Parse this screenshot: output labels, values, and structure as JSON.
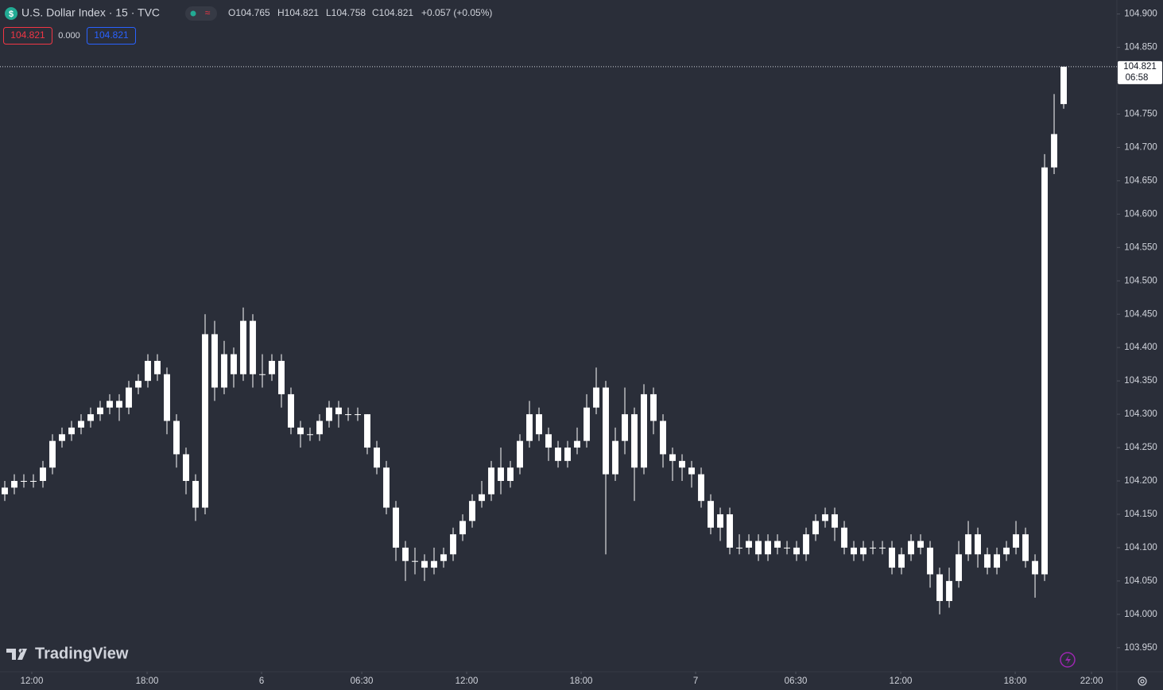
{
  "header": {
    "title": "U.S. Dollar Index · 15 · TVC",
    "ohlc": [
      "O104.765",
      "H104.821",
      "L104.758",
      "C104.821"
    ],
    "change": "+0.057 (+0.05%)",
    "price_tags": [
      "104.821",
      "0.000",
      "104.821"
    ]
  },
  "watermark": "TradingView",
  "chart_data": {
    "type": "candlestick",
    "color": "#ffffff",
    "background": "#2a2e39",
    "ylim": [
      103.914,
      104.921
    ],
    "yticks": [
      {
        "value": 103.95,
        "label": "103.950"
      },
      {
        "value": 104.0,
        "label": "104.000"
      },
      {
        "value": 104.05,
        "label": "104.050"
      },
      {
        "value": 104.1,
        "label": "104.100"
      },
      {
        "value": 104.15,
        "label": "104.150"
      },
      {
        "value": 104.2,
        "label": "104.200"
      },
      {
        "value": 104.25,
        "label": "104.250"
      },
      {
        "value": 104.3,
        "label": "104.300"
      },
      {
        "value": 104.35,
        "label": "104.350"
      },
      {
        "value": 104.4,
        "label": "104.400"
      },
      {
        "value": 104.45,
        "label": "104.450"
      },
      {
        "value": 104.5,
        "label": "104.500"
      },
      {
        "value": 104.55,
        "label": "104.550"
      },
      {
        "value": 104.6,
        "label": "104.600"
      },
      {
        "value": 104.65,
        "label": "104.650"
      },
      {
        "value": 104.7,
        "label": "104.700"
      },
      {
        "value": 104.75,
        "label": "104.750"
      },
      {
        "value": 104.8,
        "label": "104.800"
      },
      {
        "value": 104.85,
        "label": "104.850"
      },
      {
        "value": 104.9,
        "label": "104.900"
      }
    ],
    "xlim": [
      -0.5,
      116.58
    ],
    "xticks": [
      {
        "value": 2.83,
        "label": "12:00"
      },
      {
        "value": 14.92,
        "label": "18:00"
      },
      {
        "value": 26.92,
        "label": "6"
      },
      {
        "value": 37.42,
        "label": "06:30"
      },
      {
        "value": 48.42,
        "label": "12:00"
      },
      {
        "value": 60.42,
        "label": "18:00"
      },
      {
        "value": 72.42,
        "label": "7"
      },
      {
        "value": 82.92,
        "label": "06:30"
      },
      {
        "value": 93.92,
        "label": "12:00"
      },
      {
        "value": 105.92,
        "label": "18:00"
      },
      {
        "value": 113.92,
        "label": "22:00"
      }
    ],
    "last_price_label": "104.821",
    "countdown": "06:58",
    "open": [
      104.18,
      104.19,
      104.2,
      104.2,
      104.2,
      104.22,
      104.26,
      104.27,
      104.28,
      104.29,
      104.3,
      104.31,
      104.32,
      104.31,
      104.34,
      104.35,
      104.38,
      104.36,
      104.29,
      104.24,
      104.2,
      104.16,
      104.42,
      104.34,
      104.39,
      104.36,
      104.44,
      104.36,
      104.36,
      104.38,
      104.33,
      104.28,
      104.27,
      104.27,
      104.29,
      104.31,
      104.3,
      104.3,
      104.3,
      104.25,
      104.22,
      104.16,
      104.1,
      104.08,
      104.08,
      104.07,
      104.08,
      104.09,
      104.12,
      104.14,
      104.17,
      104.18,
      104.22,
      104.2,
      104.22,
      104.26,
      104.3,
      104.27,
      104.25,
      104.23,
      104.25,
      104.26,
      104.31,
      104.34,
      104.21,
      104.26,
      104.3,
      104.22,
      104.33,
      104.29,
      104.24,
      104.23,
      104.22,
      104.21,
      104.17,
      104.13,
      104.15,
      104.1,
      104.1,
      104.11,
      104.09,
      104.11,
      104.1,
      104.1,
      104.09,
      104.12,
      104.14,
      104.15,
      104.13,
      104.1,
      104.09,
      104.1,
      104.1,
      104.1,
      104.07,
      104.09,
      104.11,
      104.1,
      104.06,
      104.02,
      104.05,
      104.09,
      104.12,
      104.09,
      104.07,
      104.09,
      104.1,
      104.12,
      104.08,
      104.06,
      104.67,
      104.765
    ],
    "high": [
      104.2,
      104.21,
      104.21,
      104.21,
      104.23,
      104.27,
      104.28,
      104.29,
      104.3,
      104.31,
      104.32,
      104.33,
      104.33,
      104.35,
      104.36,
      104.39,
      104.39,
      104.37,
      104.3,
      104.25,
      104.21,
      104.45,
      104.44,
      104.41,
      104.4,
      104.46,
      104.45,
      104.39,
      104.39,
      104.39,
      104.34,
      104.29,
      104.28,
      104.3,
      104.32,
      104.32,
      104.31,
      104.31,
      104.3,
      104.26,
      104.23,
      104.17,
      104.11,
      104.1,
      104.09,
      104.1,
      104.1,
      104.13,
      104.15,
      104.18,
      104.2,
      104.23,
      104.25,
      104.23,
      104.27,
      104.32,
      104.31,
      104.28,
      104.26,
      104.26,
      104.28,
      104.33,
      104.37,
      104.35,
      104.28,
      104.34,
      104.31,
      104.345,
      104.34,
      104.3,
      104.25,
      104.24,
      104.23,
      104.22,
      104.18,
      104.16,
      104.16,
      104.12,
      104.12,
      104.12,
      104.12,
      104.12,
      104.11,
      104.11,
      104.13,
      104.15,
      104.16,
      104.16,
      104.14,
      104.11,
      104.11,
      104.11,
      104.11,
      104.11,
      104.1,
      104.12,
      104.12,
      104.11,
      104.07,
      104.07,
      104.11,
      104.14,
      104.13,
      104.1,
      104.1,
      104.11,
      104.14,
      104.13,
      104.09,
      104.69,
      104.78,
      104.821
    ],
    "low": [
      104.17,
      104.18,
      104.19,
      104.19,
      104.19,
      104.21,
      104.25,
      104.26,
      104.27,
      104.28,
      104.29,
      104.3,
      104.29,
      104.3,
      104.33,
      104.34,
      104.35,
      104.27,
      104.22,
      104.18,
      104.14,
      104.15,
      104.32,
      104.33,
      104.34,
      104.35,
      104.34,
      104.34,
      104.35,
      104.31,
      104.27,
      104.25,
      104.26,
      104.26,
      104.28,
      104.28,
      104.29,
      104.29,
      104.24,
      104.21,
      104.15,
      104.08,
      104.05,
      104.06,
      104.05,
      104.06,
      104.07,
      104.08,
      104.11,
      104.13,
      104.16,
      104.17,
      104.18,
      104.19,
      104.21,
      104.25,
      104.26,
      104.23,
      104.22,
      104.22,
      104.24,
      104.25,
      104.3,
      104.09,
      104.2,
      104.24,
      104.17,
      104.21,
      104.27,
      104.22,
      104.2,
      104.2,
      104.19,
      104.16,
      104.12,
      104.11,
      104.09,
      104.09,
      104.09,
      104.08,
      104.08,
      104.09,
      104.09,
      104.08,
      104.08,
      104.11,
      104.13,
      104.11,
      104.09,
      104.08,
      104.08,
      104.09,
      104.09,
      104.06,
      104.06,
      104.08,
      104.09,
      104.04,
      104.0,
      104.01,
      104.04,
      104.08,
      104.07,
      104.06,
      104.06,
      104.08,
      104.09,
      104.07,
      104.025,
      104.05,
      104.66,
      104.758
    ],
    "close": [
      104.19,
      104.2,
      104.2,
      104.2,
      104.22,
      104.26,
      104.27,
      104.28,
      104.29,
      104.3,
      104.31,
      104.32,
      104.31,
      104.34,
      104.35,
      104.38,
      104.36,
      104.29,
      104.24,
      104.2,
      104.16,
      104.42,
      104.34,
      104.39,
      104.36,
      104.44,
      104.36,
      104.36,
      104.38,
      104.33,
      104.28,
      104.27,
      104.27,
      104.29,
      104.31,
      104.3,
      104.3,
      104.3,
      104.25,
      104.22,
      104.16,
      104.1,
      104.08,
      104.08,
      104.07,
      104.08,
      104.09,
      104.12,
      104.14,
      104.17,
      104.18,
      104.22,
      104.2,
      104.22,
      104.26,
      104.3,
      104.27,
      104.25,
      104.23,
      104.25,
      104.26,
      104.31,
      104.34,
      104.21,
      104.26,
      104.3,
      104.22,
      104.33,
      104.29,
      104.24,
      104.23,
      104.22,
      104.21,
      104.17,
      104.13,
      104.15,
      104.1,
      104.1,
      104.11,
      104.09,
      104.11,
      104.1,
      104.1,
      104.09,
      104.12,
      104.14,
      104.15,
      104.13,
      104.1,
      104.09,
      104.1,
      104.1,
      104.1,
      104.07,
      104.09,
      104.11,
      104.1,
      104.06,
      104.02,
      104.05,
      104.09,
      104.12,
      104.09,
      104.07,
      104.09,
      104.1,
      104.12,
      104.08,
      104.06,
      104.67,
      104.72,
      104.821
    ]
  }
}
